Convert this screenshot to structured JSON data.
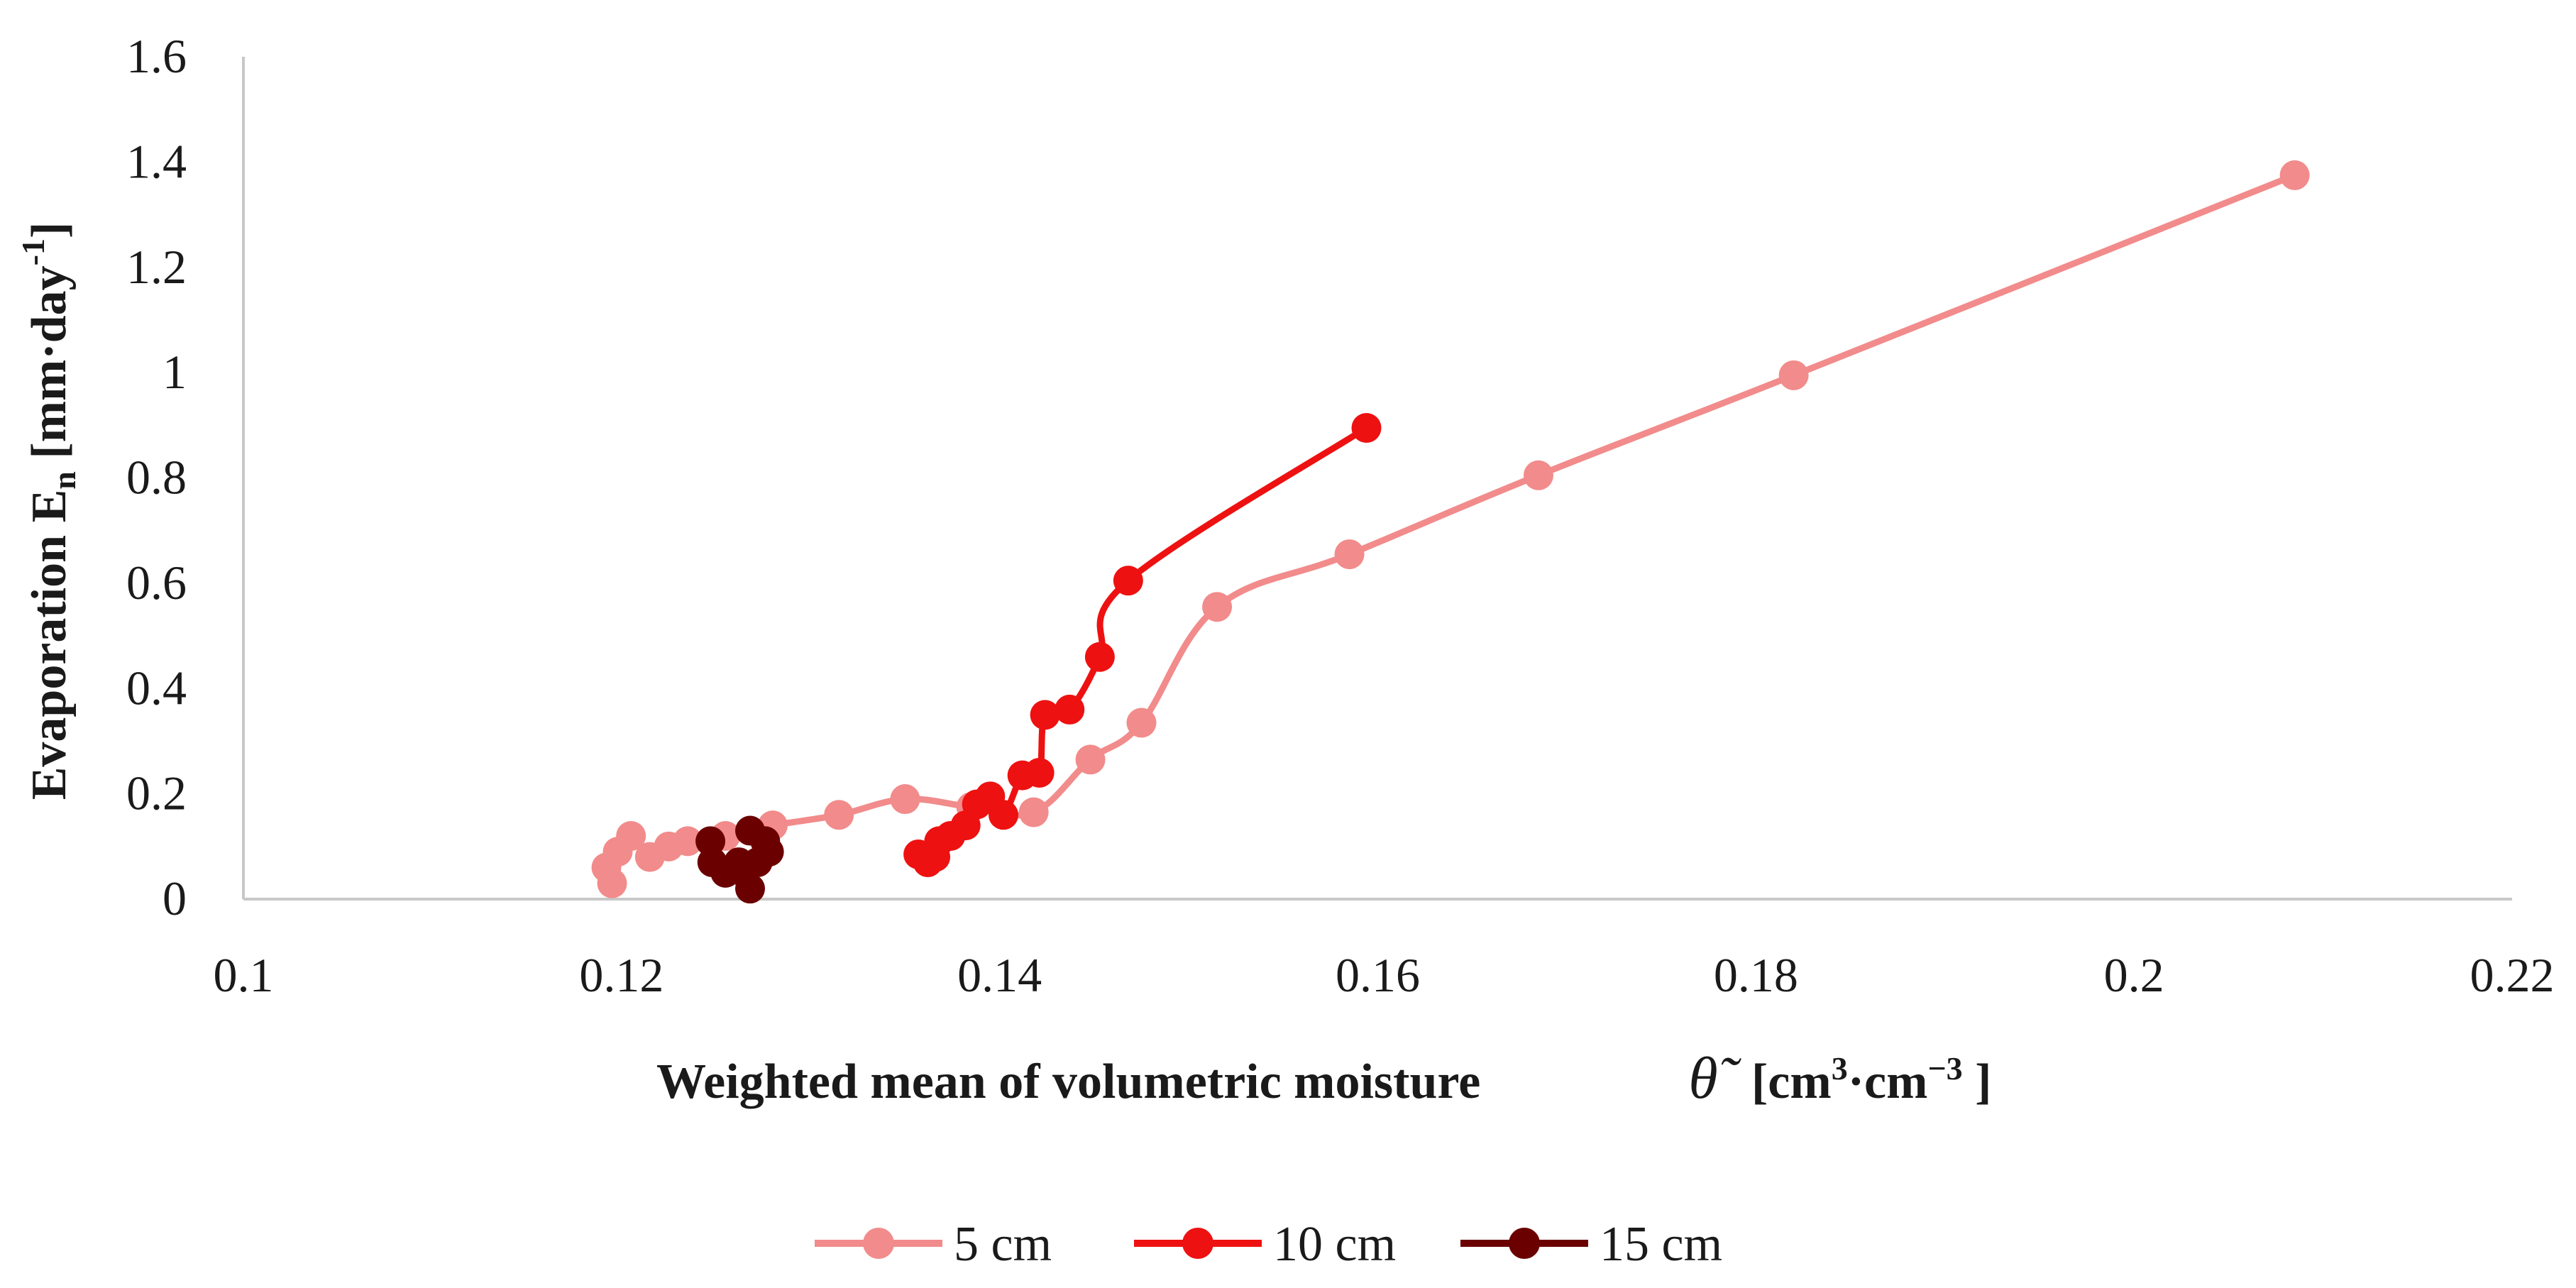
{
  "chart_data": {
    "type": "scatter",
    "xlabel": "Weighted mean of volumetric moisture",
    "xlabel_symbol": "θ̃",
    "xlabel_unit_open": "[cm",
    "xlabel_unit_exp1": "3",
    "xlabel_unit_mid": "·cm",
    "xlabel_unit_exp2": "−3",
    "xlabel_unit_close": " ]",
    "ylabel_main": "Evaporation E",
    "ylabel_sub": "n",
    "ylabel_unit": " [mm·day",
    "ylabel_exp": "-1",
    "ylabel_close": "]",
    "xlim": [
      0.1,
      0.22
    ],
    "ylim": [
      0,
      1.6
    ],
    "xticks": [
      0.1,
      0.12,
      0.14,
      0.16,
      0.18,
      0.2,
      0.22
    ],
    "xtick_labels": [
      "0.1",
      "0.12",
      "0.14",
      "0.16",
      "0.18",
      "0.2",
      "0.22"
    ],
    "yticks": [
      0,
      0.2,
      0.4,
      0.6,
      0.8,
      1,
      1.2,
      1.4,
      1.6
    ],
    "ytick_labels": [
      "0",
      "0.2",
      "0.4",
      "0.6",
      "0.8",
      "1",
      "1.2",
      "1.4",
      "1.6"
    ],
    "legend_position": "bottom-center",
    "series": [
      {
        "name": "5 cm",
        "color": "#F28B8B",
        "points": [
          [
            0.2085,
            1.375
          ],
          [
            0.182,
            0.995
          ],
          [
            0.1685,
            0.805
          ],
          [
            0.1585,
            0.655
          ],
          [
            0.1515,
            0.555
          ],
          [
            0.1475,
            0.335
          ],
          [
            0.1448,
            0.265
          ],
          [
            0.1418,
            0.165
          ],
          [
            0.1385,
            0.175
          ],
          [
            0.135,
            0.19
          ],
          [
            0.1315,
            0.16
          ],
          [
            0.128,
            0.14
          ],
          [
            0.1255,
            0.12
          ],
          [
            0.1235,
            0.11
          ],
          [
            0.1225,
            0.1
          ],
          [
            0.1215,
            0.08
          ],
          [
            0.1205,
            0.12
          ],
          [
            0.1198,
            0.09
          ],
          [
            0.1192,
            0.06
          ],
          [
            0.1195,
            0.03
          ]
        ]
      },
      {
        "name": "10 cm",
        "color": "#EE1111",
        "points": [
          [
            0.1594,
            0.895
          ],
          [
            0.1468,
            0.605
          ],
          [
            0.1453,
            0.46
          ],
          [
            0.1437,
            0.36
          ],
          [
            0.1424,
            0.35
          ],
          [
            0.1421,
            0.24
          ],
          [
            0.1412,
            0.235
          ],
          [
            0.1402,
            0.16
          ],
          [
            0.1395,
            0.195
          ],
          [
            0.1388,
            0.18
          ],
          [
            0.1382,
            0.14
          ],
          [
            0.1374,
            0.12
          ],
          [
            0.1368,
            0.11
          ],
          [
            0.1362,
            0.07
          ],
          [
            0.1357,
            0.085
          ],
          [
            0.1366,
            0.08
          ]
        ]
      },
      {
        "name": "15 cm",
        "color": "#6B0000",
        "points": [
          [
            0.1278,
            0.09
          ],
          [
            0.1268,
            0.13
          ],
          [
            0.1276,
            0.11
          ],
          [
            0.1272,
            0.07
          ],
          [
            0.1265,
            0.05
          ],
          [
            0.1268,
            0.02
          ],
          [
            0.1262,
            0.07
          ],
          [
            0.1255,
            0.05
          ],
          [
            0.1248,
            0.07
          ],
          [
            0.1247,
            0.11
          ]
        ]
      }
    ]
  }
}
